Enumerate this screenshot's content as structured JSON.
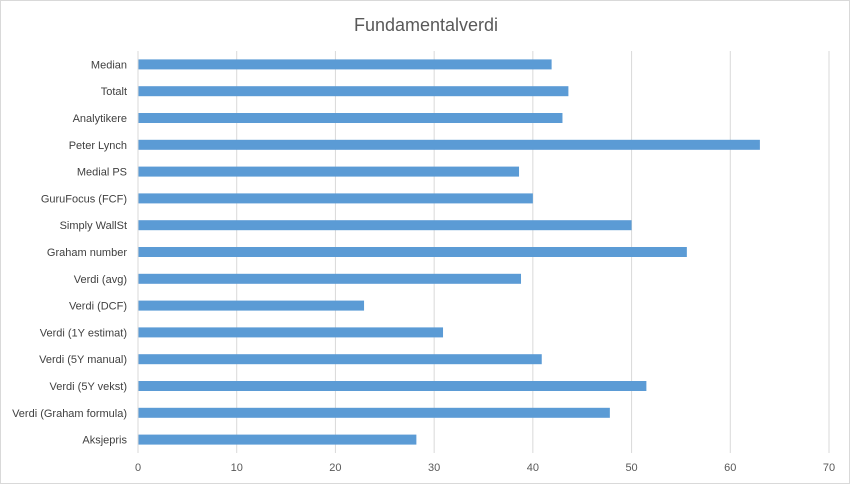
{
  "chart_data": {
    "type": "bar",
    "orientation": "horizontal",
    "title": "Fundamentalverdi",
    "xlabel": "",
    "ylabel": "",
    "categories": [
      "Median",
      "Totalt",
      "Analytikere",
      "Peter Lynch",
      "Medial PS",
      "GuruFocus (FCF)",
      "Simply WallSt",
      "Graham number",
      "Verdi (avg)",
      "Verdi (DCF)",
      "Verdi (1Y estimat)",
      "Verdi (5Y manual)",
      "Verdi (5Y vekst)",
      "Verdi (Graham formula)",
      "Aksjepris"
    ],
    "values": [
      41.9,
      43.6,
      43.0,
      63.0,
      38.6,
      40.0,
      50.0,
      55.6,
      38.8,
      22.9,
      30.9,
      40.9,
      51.5,
      47.8,
      28.2
    ],
    "xlim": [
      0,
      70
    ],
    "xticks": [
      "0",
      "10",
      "20",
      "30",
      "40",
      "50",
      "60",
      "70"
    ],
    "grid": true,
    "legend": "none",
    "bar_color": "#5b9bd5"
  }
}
